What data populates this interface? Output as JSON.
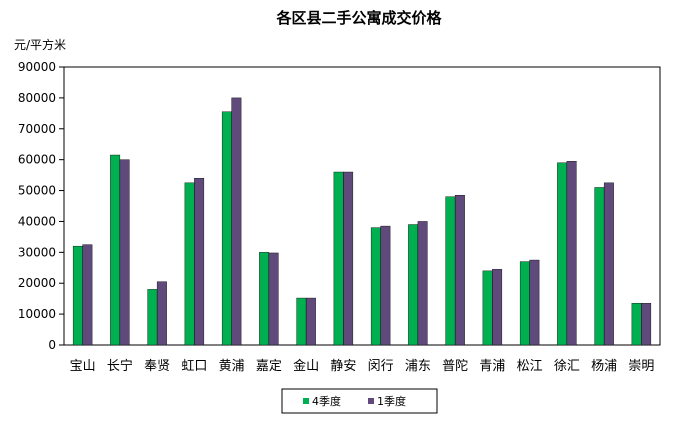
{
  "chart_data": {
    "type": "bar",
    "title": "各区县二手公寓成交价格",
    "ylabel": "元/平方米",
    "xlabel": "",
    "ylim": [
      0,
      90000
    ],
    "yticks": [
      "0",
      "10000",
      "20000",
      "30000",
      "40000",
      "50000",
      "60000",
      "70000",
      "80000",
      "90000"
    ],
    "categories": [
      "宝山",
      "长宁",
      "奉贤",
      "虹口",
      "黄浦",
      "嘉定",
      "金山",
      "静安",
      "闵行",
      "浦东",
      "普陀",
      "青浦",
      "松江",
      "徐汇",
      "杨浦",
      "崇明"
    ],
    "series": [
      {
        "name": "4季度",
        "color": "#00b050",
        "values": [
          32000,
          61500,
          18000,
          52500,
          75500,
          30000,
          15200,
          56000,
          38000,
          39000,
          48000,
          24000,
          27000,
          59000,
          51000,
          13500
        ]
      },
      {
        "name": "1季度",
        "color": "#604a7b",
        "values": [
          32500,
          60000,
          20500,
          54000,
          80000,
          29800,
          15200,
          56000,
          38500,
          40000,
          48500,
          24500,
          27500,
          59500,
          52500,
          13500
        ]
      }
    ],
    "grid": false,
    "legend_position": "bottom"
  }
}
